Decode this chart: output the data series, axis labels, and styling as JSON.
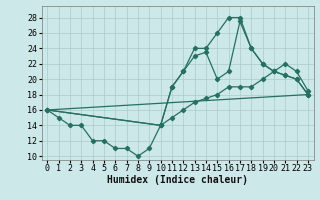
{
  "background_color": "#cde8e8",
  "grid_color": "#aacccc",
  "line_color": "#267060",
  "marker_color": "#267060",
  "xlabel": "Humidex (Indice chaleur)",
  "ylim": [
    9.5,
    29.5
  ],
  "xlim": [
    -0.5,
    23.5
  ],
  "yticks": [
    10,
    12,
    14,
    16,
    18,
    20,
    22,
    24,
    26,
    28
  ],
  "xticks": [
    0,
    1,
    2,
    3,
    4,
    5,
    6,
    7,
    8,
    9,
    10,
    11,
    12,
    13,
    14,
    15,
    16,
    17,
    18,
    19,
    20,
    21,
    22,
    23
  ],
  "line1_x": [
    0,
    1,
    2,
    3,
    4,
    5,
    6,
    7,
    8,
    9,
    10,
    11,
    12,
    13,
    14,
    15,
    16,
    17,
    18,
    19,
    20,
    21,
    22,
    23
  ],
  "line1_y": [
    16,
    15,
    14,
    14,
    12,
    12,
    11,
    11,
    10,
    11,
    14,
    19,
    21,
    24,
    24,
    26,
    28,
    28,
    24,
    22,
    21,
    20.5,
    20,
    18
  ],
  "line2_x": [
    0,
    10,
    11,
    12,
    13,
    14,
    15,
    16,
    17,
    18,
    19,
    20,
    21,
    22,
    23
  ],
  "line2_y": [
    16,
    14,
    19,
    21,
    23,
    23.5,
    20,
    21,
    27.5,
    24,
    22,
    21,
    20.5,
    20,
    18
  ],
  "line3_x": [
    0,
    23
  ],
  "line3_y": [
    16,
    18
  ],
  "line4_x": [
    0,
    10,
    11,
    12,
    13,
    14,
    15,
    16,
    17,
    18,
    19,
    20,
    21,
    22,
    23
  ],
  "line4_y": [
    16,
    14,
    15,
    16,
    17,
    17.5,
    18,
    19,
    19,
    19,
    20,
    21,
    22,
    21,
    18.5
  ],
  "axis_fontsize": 7,
  "tick_fontsize": 6
}
